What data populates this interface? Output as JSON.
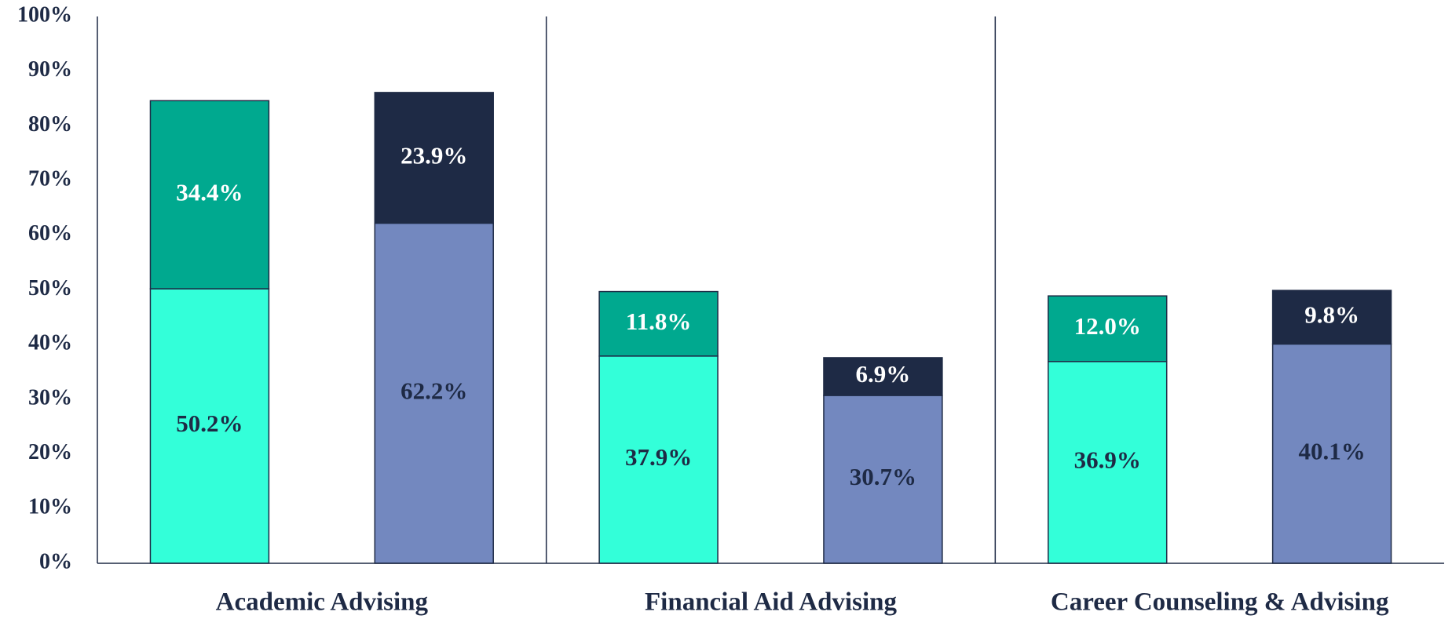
{
  "chart_data": {
    "type": "stacked-bar",
    "categories": [
      "Academic Advising",
      "Financial Aid Advising",
      "Career Counseling & Advising"
    ],
    "series": [
      {
        "stack": "a",
        "color": "#33ffd9",
        "label_color": "#1e2a45",
        "values": [
          50.2,
          37.9,
          36.9
        ],
        "value_labels": [
          "50.2%",
          "37.9%",
          "36.9%"
        ]
      },
      {
        "stack": "a",
        "color": "#00a98f",
        "label_color": "#ffffff",
        "values": [
          34.4,
          11.8,
          12.0
        ],
        "value_labels": [
          "34.4%",
          "11.8%",
          "12.0%"
        ]
      },
      {
        "stack": "b",
        "color": "#7388bf",
        "label_color": "#1e2a45",
        "values": [
          62.2,
          30.7,
          40.1
        ],
        "value_labels": [
          "62.2%",
          "30.7%",
          "40.1%"
        ]
      },
      {
        "stack": "b",
        "color": "#1e2a45",
        "label_color": "#ffffff",
        "values": [
          23.9,
          6.9,
          9.8
        ],
        "value_labels": [
          "23.9%",
          "6.9%",
          "9.8%"
        ]
      }
    ],
    "ylim": [
      0,
      100
    ],
    "yticks": [
      {
        "value": 0,
        "label": "0%"
      },
      {
        "value": 10,
        "label": "10%"
      },
      {
        "value": 20,
        "label": "20%"
      },
      {
        "value": 30,
        "label": "30%"
      },
      {
        "value": 40,
        "label": "40%"
      },
      {
        "value": 50,
        "label": "50%"
      },
      {
        "value": 60,
        "label": "60%"
      },
      {
        "value": 70,
        "label": "70%"
      },
      {
        "value": 80,
        "label": "80%"
      },
      {
        "value": 90,
        "label": "90%"
      },
      {
        "value": 100,
        "label": "100%"
      }
    ],
    "grid": false
  }
}
